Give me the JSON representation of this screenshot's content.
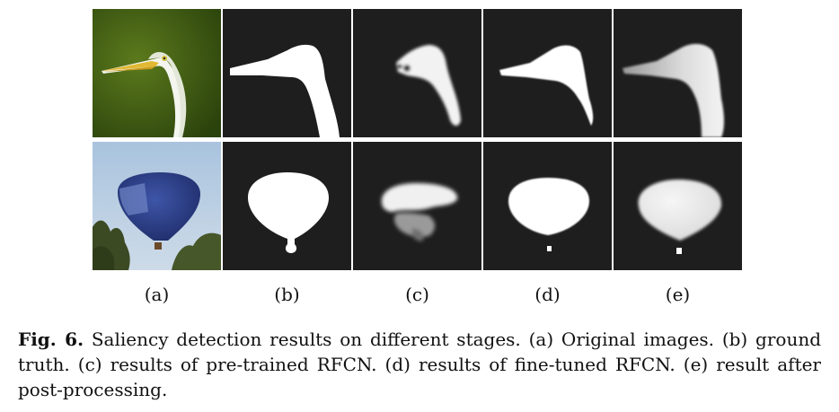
{
  "figure": {
    "column_labels": [
      "(a)",
      "(b)",
      "(c)",
      "(d)",
      "(e)"
    ],
    "rows": [
      {
        "subject": "egret",
        "panels": [
          "egret-photo",
          "egret-ground-truth-mask",
          "egret-pretrained-rfcn-map",
          "egret-finetuned-rfcn-map",
          "egret-postprocessed-map"
        ]
      },
      {
        "subject": "hot-air-balloon",
        "panels": [
          "balloon-photo",
          "balloon-ground-truth-mask",
          "balloon-pretrained-rfcn-map",
          "balloon-finetuned-rfcn-map",
          "balloon-postprocessed-map"
        ]
      }
    ]
  },
  "caption": {
    "label": "Fig. 6.",
    "text": "Saliency detection results on different stages. (a) Original images. (b) ground truth. (c) results of pre-trained RFCN. (d) results of fine-tuned RFCN. (e) result after post-processing."
  },
  "colors": {
    "mask_background": "#1e1e1e",
    "mask_foreground": "#ffffff",
    "foliage_green": "#3a5a12",
    "sky_blue": "#b8cfe4",
    "balloon_blue": "#2b3f8c"
  }
}
